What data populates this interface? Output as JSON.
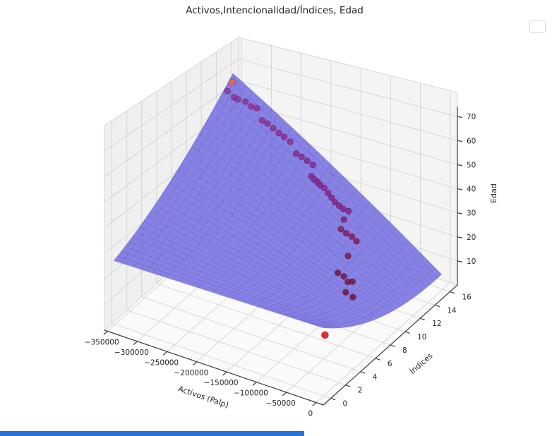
{
  "title": "Activos,Intencionalidad/Índices, Edad",
  "legend": {
    "present": true,
    "entries": []
  },
  "bottom_bar_color": "#2673de",
  "chart_data": {
    "type": "3d_surface_scatter",
    "title": "Activos,Intencionalidad/Índices, Edad",
    "axes": {
      "x": {
        "label": "Activos (Palp)",
        "tick_values": [
          -350000,
          -300000,
          -250000,
          -200000,
          -150000,
          -100000,
          -50000,
          0
        ],
        "tick_labels": [
          "−350000",
          "−300000",
          "−250000",
          "−200000",
          "−150000",
          "−100000",
          "−50000",
          "0"
        ],
        "range": [
          -355000,
          12000
        ]
      },
      "y": {
        "label": "Índices",
        "tick_values": [
          0,
          2,
          4,
          6,
          8,
          10,
          12,
          14,
          16
        ],
        "tick_labels": [
          "0",
          "2",
          "4",
          "6",
          "8",
          "10",
          "12",
          "14",
          "16"
        ],
        "range": [
          -1,
          17
        ]
      },
      "z": {
        "label": "Edad",
        "tick_values": [
          10,
          20,
          30,
          40,
          50,
          60,
          70
        ],
        "tick_labels": [
          "10",
          "20",
          "30",
          "40",
          "50",
          "60",
          "70"
        ],
        "range": [
          0,
          80
        ]
      }
    },
    "surface": {
      "x_range": [
        -352000,
        -2000
      ],
      "y_range": [
        0,
        16
      ],
      "fit_note": "quadratic fit z(s,t), s=(x-xmin)/xspan, t=y/16",
      "coeffs": {
        "c0": 25,
        "ct": 19,
        "ctt": 22,
        "cst": -60
      },
      "corner_z": {
        "xmin_ymin": 25,
        "xmax_ymin": 25,
        "xmin_ymax": 66,
        "xmax_ymax": 6
      },
      "mesh_steps": 32,
      "fill": "rgba(104,97,222,0.78)",
      "mesh_line": "rgba(70,60,188,0.55)"
    },
    "scatter": {
      "note": "points [x Activos(Palp), y Índices, z Edad, color, radius]",
      "points": [
        [
          -302000,
          11.9,
          75,
          "#e76a57",
          4.8
        ],
        [
          -300000,
          11.1,
          73,
          "#9a3a9b",
          4.3
        ],
        [
          -285000,
          10.8,
          72,
          "#96359b",
          4.3
        ],
        [
          -285000,
          11.3,
          70,
          "#96359b",
          4.3
        ],
        [
          -276000,
          11.6,
          69,
          "#96359b",
          4.3
        ],
        [
          -269000,
          11.8,
          67,
          "#963399",
          4.3
        ],
        [
          -263000,
          12.1,
          66,
          "#963399",
          4.3
        ],
        [
          -252000,
          11.9,
          62,
          "#933098",
          4.3
        ],
        [
          -244000,
          12.0,
          61,
          "#933098",
          4.3
        ],
        [
          -237000,
          12.2,
          59,
          "#933098",
          4.3
        ],
        [
          -230000,
          12.4,
          57,
          "#912e96",
          4.3
        ],
        [
          -221000,
          12.4,
          56,
          "#912e96",
          4.3
        ],
        [
          -213500,
          12.6,
          54,
          "#912e96",
          4.3
        ],
        [
          -202300,
          12.5,
          50,
          "#8e2c93",
          4.3
        ],
        [
          -194400,
          12.6,
          49,
          "#8e2c93",
          4.3
        ],
        [
          -188900,
          12.9,
          47,
          "#8e2c93",
          4.3
        ],
        [
          -179200,
          12.9,
          46,
          "#8e2c93",
          4.3
        ],
        [
          -178000,
          12.6,
          42,
          "#8c2a90",
          4.3
        ],
        [
          -172000,
          12.5,
          41.3,
          "#8c2a90",
          4.3
        ],
        [
          -166000,
          12.5,
          40.6,
          "#8c2a90",
          4.3
        ],
        [
          -160500,
          12.4,
          40,
          "#8c2a90",
          4.3
        ],
        [
          -155000,
          12.5,
          39,
          "#8c2a90",
          4.3
        ],
        [
          -150000,
          12.6,
          37,
          "#8c2a90",
          4.3
        ],
        [
          -144000,
          12.6,
          35.5,
          "#8a2889",
          4.3
        ],
        [
          -138200,
          12.6,
          34,
          "#8a2889",
          4.3
        ],
        [
          -132000,
          12.65,
          33,
          "#8a2889",
          4.3
        ],
        [
          -126100,
          12.7,
          32,
          "#8a2889",
          4.3
        ],
        [
          -119400,
          12.9,
          31,
          "#8a2889",
          4.3
        ],
        [
          -123300,
          12.6,
          28,
          "#872574",
          4.3
        ],
        [
          -123200,
          12.2,
          25,
          "#84225f",
          4.3
        ],
        [
          -114500,
          12.2,
          24,
          "#84225f",
          4.3
        ],
        [
          -106500,
          12.3,
          23,
          "#84225f",
          4.3
        ],
        [
          -101100,
          12.5,
          21,
          "#84225f",
          4.3
        ],
        [
          -103900,
          11.6,
          17,
          "#801f52",
          4.3
        ],
        [
          -109900,
          10.7,
          12,
          "#7c1c48",
          4.3
        ],
        [
          -101100,
          10.8,
          11,
          "#7c1c48",
          4.3
        ],
        [
          -91900,
          10.6,
          10,
          "#7c1c48",
          4.3
        ],
        [
          -86500,
          10.8,
          10,
          "#7c1c48",
          4.3
        ],
        [
          -90200,
          10.2,
          7,
          "#781a40",
          4.3
        ],
        [
          -78300,
          10.2,
          6,
          "#781a40",
          4.3
        ],
        [
          -73900,
          6.1,
          2,
          "#e8121c",
          5.0
        ]
      ],
      "point_stroke": "rgba(35,8,38,0.35)"
    },
    "style": {
      "pane_left": "#f0f0f0",
      "pane_back": "#f4f4f4",
      "pane_floor": "#fafafa",
      "grid_line": "#cfcfcf",
      "spine": "#3c3c3c",
      "tick_text": "#262626",
      "title_color": "#242424"
    },
    "layout_hints": {
      "grid": true,
      "legend_position": "upper right (empty)",
      "view": "elev≈30, azim≈-60"
    }
  }
}
